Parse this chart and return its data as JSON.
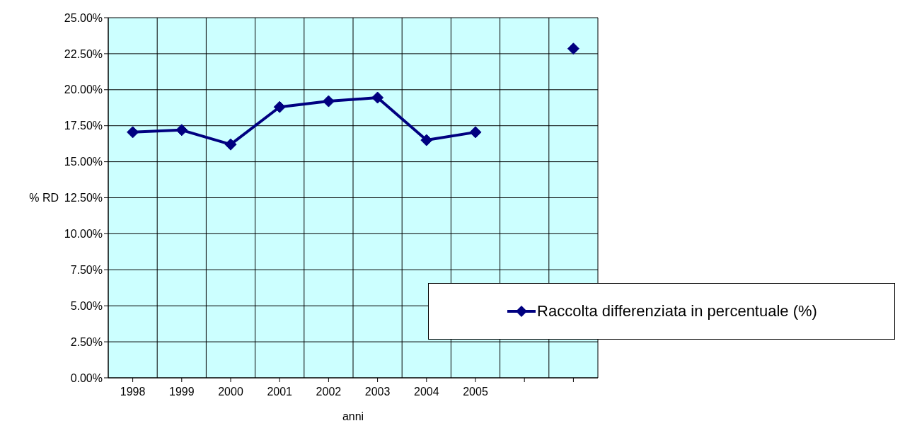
{
  "chart_data": {
    "type": "line",
    "xlabel": "anni",
    "ylabel": "% RD",
    "categories": [
      "1998",
      "1999",
      "2000",
      "2001",
      "2002",
      "2003",
      "2004",
      "2005",
      null,
      null
    ],
    "series": [
      {
        "name": "Raccolta differenziata in percentuale (%)",
        "color": "#000080",
        "values": [
          17.05,
          17.2,
          16.2,
          18.8,
          19.2,
          19.45,
          16.5,
          17.05,
          null,
          22.85
        ]
      }
    ],
    "ylim": [
      0,
      25
    ],
    "yticks": [
      {
        "value": 0,
        "label": "0.00%"
      },
      {
        "value": 2.5,
        "label": "2.50%"
      },
      {
        "value": 5,
        "label": "5.00%"
      },
      {
        "value": 7.5,
        "label": "7.50%"
      },
      {
        "value": 10,
        "label": "10.00%"
      },
      {
        "value": 12.5,
        "label": "12.50%"
      },
      {
        "value": 15,
        "label": "15.00%"
      },
      {
        "value": 17.5,
        "label": "17.50%"
      },
      {
        "value": 20,
        "label": "20.00%"
      },
      {
        "value": 22.5,
        "label": "22.50%"
      },
      {
        "value": 25,
        "label": "25.00%"
      }
    ],
    "grid": true,
    "legend": "bottom right",
    "marker": "diamond",
    "line_style": "solid"
  }
}
